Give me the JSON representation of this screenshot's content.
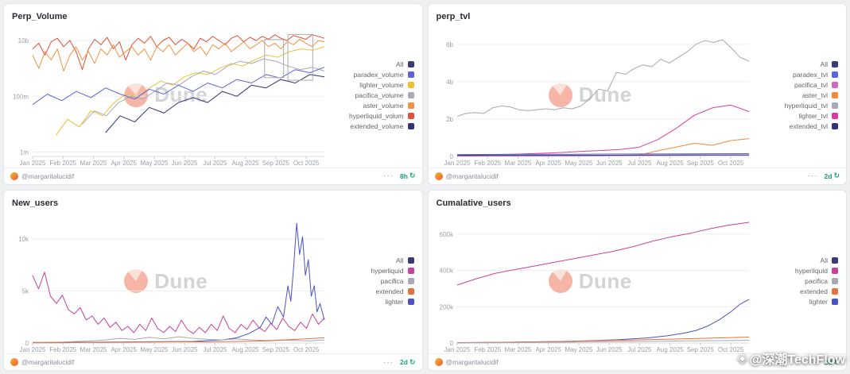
{
  "page": {
    "watermark_icon": "◈",
    "watermark_handle": "@深潮TechFlow"
  },
  "panels": [
    {
      "title": "Perp_Volume",
      "watermark": "Dune",
      "footer": {
        "author": "@margaritalucidif",
        "menu": "···",
        "badge": "8h"
      }
    },
    {
      "title": "perp_tvl",
      "watermark": "Dune",
      "footer": {
        "author": "@margaritalucidif",
        "menu": "···",
        "badge": "2d"
      }
    },
    {
      "title": "New_users",
      "watermark": "Dune",
      "footer": {
        "author": "@margaritalucidif",
        "menu": "···",
        "badge": "2d"
      }
    },
    {
      "title": "Cumalative_users",
      "watermark": "Dune",
      "footer": {
        "author": "@margaritalucidif",
        "menu": "···",
        "badge": "2d"
      }
    }
  ],
  "chart_data": [
    {
      "type": "line",
      "title": "Perp_Volume",
      "yscale": "log",
      "x_range": [
        "Jan 2025",
        "Oct 2025"
      ],
      "xticks": [
        "Jan 2025",
        "Feb 2025",
        "Mar 2025",
        "Apr 2025",
        "May 2025",
        "Jun 2025",
        "Jul 2025",
        "Aug 2025",
        "Sep 2025",
        "Oct 2025"
      ],
      "ylim": [
        700000.0,
        25000000000.0
      ],
      "yticks": [
        {
          "v": 1000000.0,
          "label": "1m"
        },
        {
          "v": 100000000.0,
          "label": "100m"
        },
        {
          "v": 10000000000.0,
          "label": "10b"
        }
      ],
      "legend": [
        {
          "label": "All",
          "color": "#3b3b73"
        },
        {
          "label": "paradex_volume",
          "color": "#5b64d8"
        },
        {
          "label": "lighter_volume",
          "color": "#f0c033"
        },
        {
          "label": "pacifica_volume",
          "color": "#a7a9b3"
        },
        {
          "label": "aster_volume",
          "color": "#f59140"
        },
        {
          "label": "hyperliquid_volum",
          "color": "#e05038"
        },
        {
          "label": "extended_volume",
          "color": "#32327a"
        }
      ],
      "series": [
        {
          "name": "hyperliquid_volum",
          "color": "#e05038",
          "x0": 0,
          "x1": 1,
          "values": [
            5000000000.0,
            8000000000.0,
            3000000000.0,
            9000000000.0,
            12000000000.0,
            6000000000.0,
            10000000000.0,
            4000000000.0,
            900000000.0,
            5000000000.0,
            11000000000.0,
            7000000000.0,
            13000000000.0,
            5000000000.0,
            9000000000.0,
            2000000000.0,
            7000000000.0,
            12000000000.0,
            8000000000.0,
            14000000000.0,
            6000000000.0,
            10000000000.0,
            13000000000.0,
            7000000000.0,
            11000000000.0,
            8000000000.0,
            5000000000.0,
            12000000000.0,
            9000000000.0,
            14000000000.0,
            10000000000.0,
            7000000000.0,
            12000000000.0,
            15000000000.0,
            9000000000.0,
            13000000000.0,
            10000000000.0,
            14000000000.0,
            11000000000.0,
            16000000000.0,
            12000000000.0,
            10000000000.0,
            15000000000.0,
            13000000000.0,
            11000000000.0,
            16000000000.0,
            14000000000.0,
            12000000000.0
          ]
        },
        {
          "name": "aster_volume",
          "color": "#f59140",
          "x0": 0,
          "x1": 1,
          "values": [
            3000000000.0,
            1000000000.0,
            4000000000.0,
            2000000000.0,
            5000000000.0,
            800000000.0,
            3000000000.0,
            6000000000.0,
            2000000000.0,
            4000000000.0,
            1500000000.0,
            5000000000.0,
            3000000000.0,
            7000000000.0,
            2500000000.0,
            4000000000.0,
            6000000000.0,
            3000000000.0,
            5000000000.0,
            2000000000.0,
            6000000000.0,
            4000000000.0,
            7000000000.0,
            3000000000.0,
            5000000000.0,
            8000000000.0,
            4000000000.0,
            6000000000.0,
            3000000000.0,
            7000000000.0,
            5000000000.0,
            8000000000.0,
            4000000000.0,
            6000000000.0,
            9000000000.0,
            5000000000.0,
            7000000000.0,
            10000000000.0,
            6000000000.0,
            8000000000.0,
            5000000000.0,
            9000000000.0,
            7000000000.0,
            11000000000.0,
            8000000000.0,
            6000000000.0,
            10000000000.0,
            9000000000.0
          ]
        },
        {
          "name": "lighter_volume",
          "color": "#f0c033",
          "x0": 0.08,
          "x1": 1,
          "values": [
            4000000.0,
            15000000.0,
            8000000.0,
            30000000.0,
            20000000.0,
            60000000.0,
            120000000.0,
            90000000.0,
            200000000.0,
            350000000.0,
            250000000.0,
            500000000.0,
            700000000.0,
            600000000.0,
            1000000000.0,
            1500000000.0,
            1200000000.0,
            2000000000.0,
            3000000000.0,
            2500000000.0,
            4000000000.0,
            5000000000.0,
            4500000000.0,
            6000000000.0
          ]
        },
        {
          "name": "pacifica_volume",
          "color": "#a7a9b3",
          "x0": 0.17,
          "x1": 1,
          "values": [
            10000000.0,
            30000000.0,
            20000000.0,
            60000000.0,
            100000000.0,
            80000000.0,
            150000000.0,
            300000000.0,
            250000000.0,
            500000000.0,
            800000000.0,
            600000000.0,
            1200000000.0,
            1800000000.0,
            1500000000.0,
            2200000000.0,
            1800000000.0,
            1200000000.0,
            900000000.0,
            1100000000.0,
            800000000.0
          ]
        },
        {
          "name": "paradex_volume",
          "color": "#5b64d8",
          "x0": 0,
          "x1": 1,
          "values": [
            50000000.0,
            120000000.0,
            70000000.0,
            150000000.0,
            90000000.0,
            200000000.0,
            120000000.0,
            80000000.0,
            180000000.0,
            120000000.0,
            250000000.0,
            150000000.0,
            300000000.0,
            200000000.0,
            400000000.0,
            300000000.0,
            600000000.0,
            450000000.0,
            900000000.0,
            700000000.0,
            1100000000.0
          ]
        },
        {
          "name": "extended_volume",
          "color": "#32327a",
          "x0": 0.25,
          "x1": 1,
          "values": [
            5000000.0,
            20000000.0,
            12000000.0,
            40000000.0,
            25000000.0,
            60000000.0,
            90000000.0,
            60000000.0,
            150000000.0,
            100000000.0,
            250000000.0,
            200000000.0,
            400000000.0,
            300000000.0,
            600000000.0,
            500000000.0
          ]
        }
      ],
      "boxes": [
        {
          "x": 0.795,
          "y": 0.08,
          "w": 0.065,
          "h": 0.3
        },
        {
          "x": 0.875,
          "y": 0.04,
          "w": 0.085,
          "h": 0.36
        }
      ]
    },
    {
      "type": "line",
      "title": "perp_tvl",
      "yscale": "linear",
      "x_range": [
        "Jan 2025",
        "Oct 2025"
      ],
      "xticks": [
        "Jan 2025",
        "Feb 2025",
        "Mar 2025",
        "Apr 2025",
        "May 2025",
        "Jun 2025",
        "Jul 2025",
        "Aug 2025",
        "Sep 2025",
        "Oct 2025"
      ],
      "unit": "billions USD",
      "ylim": [
        0,
        6.8
      ],
      "yticks": [
        {
          "v": 0,
          "label": "0"
        },
        {
          "v": 2,
          "label": "2b"
        },
        {
          "v": 4,
          "label": "4b"
        },
        {
          "v": 6,
          "label": "6b"
        }
      ],
      "legend": [
        {
          "label": "All",
          "color": "#3b3b73"
        },
        {
          "label": "paradex_tvl",
          "color": "#5b64d8"
        },
        {
          "label": "pacifica_tvl",
          "color": "#cd6bb6"
        },
        {
          "label": "aster_tvl",
          "color": "#ef8a3c"
        },
        {
          "label": "hyperliquid_tvl",
          "color": "#a7a9b3"
        },
        {
          "label": "lighter_tvl",
          "color": "#d63f9e"
        },
        {
          "label": "extended_tvl",
          "color": "#32327a"
        }
      ],
      "series": [
        {
          "name": "hyperliquid_tvl",
          "color": "#a7a9b3",
          "x0": 0,
          "x1": 1,
          "values": [
            2.15,
            2.3,
            2.35,
            2.3,
            2.6,
            2.7,
            2.65,
            2.5,
            2.45,
            2.5,
            2.55,
            2.5,
            2.6,
            2.55,
            2.7,
            3.1,
            3.6,
            3.5,
            4.5,
            4.4,
            4.7,
            4.9,
            4.8,
            5.2,
            5.0,
            5.3,
            5.6,
            6.0,
            6.2,
            6.1,
            6.25,
            5.8,
            5.3,
            5.1
          ]
        },
        {
          "name": "lighter_tvl",
          "color": "#d63f9e",
          "x0": 0,
          "x1": 1,
          "values": [
            0.05,
            0.08,
            0.1,
            0.12,
            0.15,
            0.18,
            0.22,
            0.28,
            0.32,
            0.38,
            0.5,
            0.9,
            1.5,
            2.2,
            2.6,
            2.75,
            2.4
          ]
        },
        {
          "name": "aster_tvl",
          "color": "#ef8a3c",
          "x0": 0,
          "x1": 1,
          "values": [
            0.02,
            0.02,
            0.03,
            0.03,
            0.04,
            0.04,
            0.05,
            0.05,
            0.06,
            0.06,
            0.08,
            0.3,
            0.5,
            0.7,
            0.6,
            0.85,
            0.95
          ]
        },
        {
          "name": "paradex_tvl",
          "color": "#5b64d8",
          "x0": 0,
          "x1": 1,
          "values": [
            0.1,
            0.11,
            0.12,
            0.13,
            0.14,
            0.15
          ]
        },
        {
          "name": "pacifica_tvl",
          "color": "#cd6bb6",
          "x0": 0,
          "x1": 1,
          "values": [
            0.03,
            0.03,
            0.04,
            0.05,
            0.06,
            0.07
          ]
        },
        {
          "name": "extended_tvl",
          "color": "#32327a",
          "x0": 0,
          "x1": 1,
          "values": [
            0.05,
            0.06,
            0.06,
            0.07,
            0.08,
            0.08
          ]
        }
      ]
    },
    {
      "type": "line",
      "title": "New_users",
      "yscale": "linear",
      "x_range": [
        "Jan 2025",
        "Oct 2025"
      ],
      "xticks": [
        "Jan 2025",
        "Feb 2025",
        "Mar 2025",
        "Apr 2025",
        "May 2025",
        "Jun 2025",
        "Jul 2025",
        "Aug 2025",
        "Sep 2025",
        "Oct 2025"
      ],
      "unit": "thousands of users",
      "ylim": [
        0,
        12.2
      ],
      "yticks": [
        {
          "v": 0,
          "label": "0"
        },
        {
          "v": 5,
          "label": "5k"
        },
        {
          "v": 10,
          "label": "10k"
        }
      ],
      "legend": [
        {
          "label": "All",
          "color": "#3b3b73"
        },
        {
          "label": "hyperliquid",
          "color": "#c9419a"
        },
        {
          "label": "pacifica",
          "color": "#a7a9b3"
        },
        {
          "label": "extended",
          "color": "#e8703d"
        },
        {
          "label": "lighter",
          "color": "#4a52c4"
        }
      ],
      "series": [
        {
          "name": "hyperliquid",
          "color": "#c9419a",
          "x0": 0,
          "x1": 1,
          "values": [
            6.5,
            5.2,
            6.8,
            4.5,
            3.8,
            4.6,
            3.2,
            2.8,
            3.4,
            2.2,
            2.6,
            1.8,
            2.4,
            1.5,
            2.0,
            1.2,
            1.6,
            1.0,
            1.8,
            1.2,
            2.4,
            1.4,
            1.0,
            1.6,
            1.1,
            2.2,
            1.3,
            0.9,
            1.5,
            1.0,
            1.8,
            1.2,
            2.6,
            1.4,
            1.0,
            1.8,
            1.3,
            2.2,
            1.5,
            1.1,
            1.9,
            1.3,
            2.4,
            1.6,
            1.2,
            2.0,
            1.4,
            2.8,
            1.8,
            2.4
          ]
        },
        {
          "name": "lighter",
          "color": "#4a52c4",
          "points": [
            [
              0,
              0.05
            ],
            [
              0.2,
              0.08
            ],
            [
              0.4,
              0.12
            ],
            [
              0.55,
              0.15
            ],
            [
              0.65,
              0.3
            ],
            [
              0.7,
              0.5
            ],
            [
              0.74,
              0.9
            ],
            [
              0.78,
              1.5
            ],
            [
              0.8,
              2.5
            ],
            [
              0.82,
              1.8
            ],
            [
              0.84,
              3.5
            ],
            [
              0.86,
              2.5
            ],
            [
              0.875,
              5.5
            ],
            [
              0.885,
              4.0
            ],
            [
              0.895,
              7.5
            ],
            [
              0.905,
              11.5
            ],
            [
              0.915,
              8.5
            ],
            [
              0.925,
              10.2
            ],
            [
              0.935,
              6.5
            ],
            [
              0.945,
              8.0
            ],
            [
              0.955,
              4.5
            ],
            [
              0.965,
              5.5
            ],
            [
              0.975,
              3.0
            ],
            [
              0.985,
              3.8
            ],
            [
              1,
              2.2
            ]
          ]
        },
        {
          "name": "pacifica",
          "color": "#a7a9b3",
          "x0": 0,
          "x1": 1,
          "values": [
            0.05,
            0.08,
            0.1,
            0.15,
            0.2,
            0.3,
            0.45,
            0.35,
            0.55,
            0.4,
            0.6,
            0.45,
            0.35,
            0.3,
            0.4,
            0.3,
            0.25,
            0.3,
            0.25,
            0.2,
            0.3
          ]
        },
        {
          "name": "extended",
          "color": "#e8703d",
          "x0": 0,
          "x1": 1,
          "values": [
            0.02,
            0.03,
            0.05,
            0.08,
            0.1,
            0.12,
            0.1,
            0.15,
            0.2,
            0.35,
            0.5
          ]
        }
      ]
    },
    {
      "type": "line",
      "title": "Cumalative_users",
      "yscale": "linear",
      "x_range": [
        "Jan 2025",
        "Oct 2025"
      ],
      "xticks": [
        "Jan 2025",
        "Feb 2025",
        "Mar 2025",
        "Apr 2025",
        "May 2025",
        "Jun 2025",
        "Jul 2025",
        "Aug 2025",
        "Sep 2025",
        "Oct 2025"
      ],
      "unit": "thousands of users",
      "ylim": [
        0,
        700
      ],
      "yticks": [
        {
          "v": 0,
          "label": "0"
        },
        {
          "v": 200,
          "label": "200k"
        },
        {
          "v": 400,
          "label": "400k"
        },
        {
          "v": 600,
          "label": "600k"
        }
      ],
      "legend": [
        {
          "label": "All",
          "color": "#3b3b73"
        },
        {
          "label": "hyperliquid",
          "color": "#c9419a"
        },
        {
          "label": "pacifica",
          "color": "#a7a9b3"
        },
        {
          "label": "extended",
          "color": "#e8703d"
        },
        {
          "label": "lighter",
          "color": "#4a52c4"
        }
      ],
      "series": [
        {
          "name": "hyperliquid",
          "color": "#c9419a",
          "x0": 0,
          "x1": 1,
          "values": [
            320,
            355,
            385,
            405,
            425,
            445,
            465,
            485,
            505,
            530,
            560,
            585,
            605,
            630,
            650,
            665
          ]
        },
        {
          "name": "lighter",
          "color": "#4a52c4",
          "points": [
            [
              0,
              2
            ],
            [
              0.2,
              5
            ],
            [
              0.4,
              10
            ],
            [
              0.55,
              18
            ],
            [
              0.65,
              28
            ],
            [
              0.72,
              40
            ],
            [
              0.78,
              55
            ],
            [
              0.82,
              70
            ],
            [
              0.86,
              95
            ],
            [
              0.9,
              130
            ],
            [
              0.94,
              175
            ],
            [
              0.97,
              215
            ],
            [
              1,
              240
            ]
          ]
        },
        {
          "name": "extended",
          "color": "#e8703d",
          "x0": 0,
          "x1": 1,
          "values": [
            1,
            5,
            10,
            16,
            24,
            33
          ]
        },
        {
          "name": "pacifica",
          "color": "#a7a9b3",
          "x0": 0,
          "x1": 1,
          "values": [
            0.5,
            2,
            5,
            8,
            12,
            15
          ]
        }
      ]
    }
  ]
}
